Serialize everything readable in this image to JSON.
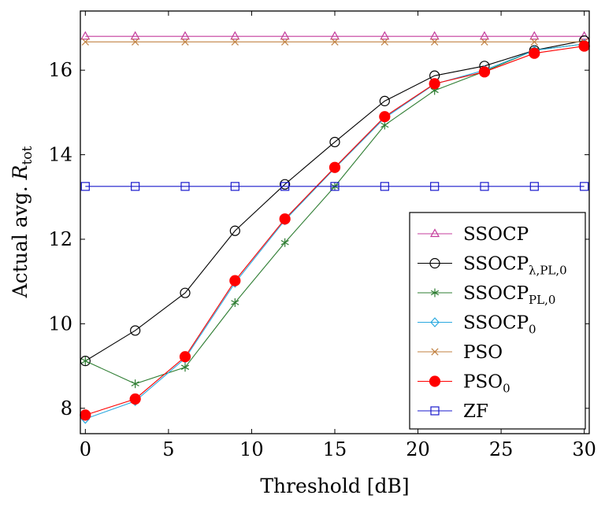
{
  "chart_data": {
    "type": "line",
    "xlabel": "Threshold [dB]",
    "ylabel": {
      "main": "Actual avg. ",
      "var": "R",
      "sub": "tot"
    },
    "xlim": [
      -0.3,
      30.3
    ],
    "ylim": [
      7.4,
      17.4
    ],
    "xticks": [
      0,
      5,
      10,
      15,
      20,
      25,
      30
    ],
    "yticks": [
      8,
      10,
      12,
      14,
      16
    ],
    "grid": false,
    "legend_position": "bottom-right",
    "x": [
      0,
      3,
      6,
      9,
      12,
      15,
      18,
      21,
      24,
      27,
      30
    ],
    "series": [
      {
        "name": "SSOCP",
        "base": "SSOCP",
        "sub": "",
        "color": "#c43c9c",
        "marker": "triangle",
        "fill": "none",
        "values": [
          16.8,
          16.8,
          16.8,
          16.8,
          16.8,
          16.8,
          16.8,
          16.8,
          16.8,
          16.8,
          16.8
        ]
      },
      {
        "name": "SSOCP_λ,PL,0",
        "base": "SSOCP",
        "sub": "λ,PL,0",
        "color": "#000000",
        "marker": "circle",
        "fill": "none",
        "values": [
          9.12,
          9.84,
          10.73,
          12.2,
          13.3,
          14.3,
          15.27,
          15.87,
          16.1,
          16.47,
          16.7
        ]
      },
      {
        "name": "SSOCP_PL,0",
        "base": "SSOCP",
        "sub": "PL,0",
        "color": "#2e7d32",
        "marker": "asterisk",
        "fill": "none",
        "values": [
          9.12,
          8.58,
          8.97,
          10.5,
          11.92,
          13.25,
          14.7,
          15.52,
          15.97,
          16.47,
          16.62
        ]
      },
      {
        "name": "SSOCP_0",
        "base": "SSOCP",
        "sub": "0",
        "color": "#2aa9e0",
        "marker": "diamond",
        "fill": "none",
        "values": [
          7.75,
          8.17,
          9.18,
          10.97,
          12.45,
          13.68,
          14.87,
          15.67,
          16.0,
          16.47,
          16.62
        ]
      },
      {
        "name": "PSO",
        "base": "PSO",
        "sub": "",
        "color": "#c08040",
        "marker": "cross",
        "fill": "none",
        "values": [
          16.67,
          16.67,
          16.67,
          16.67,
          16.67,
          16.67,
          16.67,
          16.67,
          16.67,
          16.67,
          16.67
        ]
      },
      {
        "name": "PSO_0",
        "base": "PSO",
        "sub": "0",
        "color": "#ff0000",
        "marker": "dot",
        "fill": "#ff0000",
        "values": [
          7.84,
          8.22,
          9.22,
          11.02,
          12.48,
          13.7,
          14.9,
          15.68,
          15.96,
          16.4,
          16.57
        ]
      },
      {
        "name": "ZF",
        "base": "ZF",
        "sub": "",
        "color": "#1a1acc",
        "marker": "square",
        "fill": "none",
        "values": [
          13.25,
          13.25,
          13.25,
          13.25,
          13.25,
          13.25,
          13.25,
          13.25,
          13.25,
          13.25,
          13.25
        ]
      }
    ]
  }
}
